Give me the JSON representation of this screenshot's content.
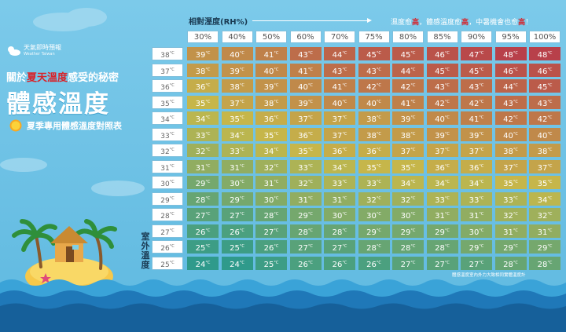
{
  "logo": {
    "name": "天氣即時預報",
    "sub": "Weather Taiwan"
  },
  "headline": {
    "prefix": "關於",
    "highlight": "夏天溫度",
    "suffix": "感受的秘密"
  },
  "title": "體感溫度",
  "subtitle": "夏季專用體感溫度對照表",
  "humidity_axis_label": "相對溼度(RH%)",
  "axis_note": {
    "p1": "濕度愈",
    "h1": "高",
    "p2": "，體感溫度愈",
    "h2": "高",
    "p3": "，中暑機會也愈",
    "h3": "高",
    "p4": "！"
  },
  "outdoor_label": "室外溫度",
  "footnote": "體感溫度室內外力大致相同實體溫度計",
  "degree_unit": "°C",
  "colors": {
    "background": "#6fc3e6",
    "highlight": "#d8232a",
    "sea": "#1f78b8"
  },
  "icons": [
    "sun-icon",
    "cloud-sun-icon",
    "palm-tree-icon",
    "hut-icon",
    "island-icon",
    "wave-icon"
  ],
  "chart_data": {
    "type": "table",
    "title": "夏季專用體感溫度對照表",
    "column_header": "相對溼度(RH%)",
    "row_header": "室外溫度",
    "humidity": [
      "30%",
      "40%",
      "50%",
      "60%",
      "70%",
      "75%",
      "80%",
      "85%",
      "90%",
      "95%",
      "100%"
    ],
    "temperatures": [
      38,
      37,
      36,
      35,
      34,
      33,
      32,
      31,
      30,
      29,
      28,
      27,
      26,
      25
    ],
    "apparent": [
      [
        39,
        40,
        41,
        43,
        44,
        45,
        45,
        46,
        47,
        48,
        48
      ],
      [
        38,
        39,
        40,
        41,
        43,
        43,
        44,
        45,
        45,
        46,
        46
      ],
      [
        36,
        38,
        39,
        40,
        41,
        42,
        42,
        43,
        43,
        44,
        45
      ],
      [
        35,
        37,
        38,
        39,
        40,
        40,
        41,
        42,
        42,
        43,
        43
      ],
      [
        34,
        35,
        36,
        37,
        37,
        38,
        39,
        40,
        41,
        42,
        42
      ],
      [
        33,
        34,
        35,
        36,
        37,
        38,
        38,
        39,
        39,
        40,
        40
      ],
      [
        32,
        33,
        34,
        35,
        36,
        36,
        37,
        37,
        37,
        38,
        38
      ],
      [
        31,
        31,
        32,
        33,
        34,
        35,
        35,
        36,
        36,
        37,
        37
      ],
      [
        29,
        30,
        31,
        32,
        33,
        33,
        34,
        34,
        34,
        35,
        35
      ],
      [
        28,
        29,
        30,
        31,
        31,
        32,
        32,
        33,
        33,
        33,
        34
      ],
      [
        27,
        27,
        28,
        29,
        30,
        30,
        30,
        31,
        31,
        32,
        32
      ],
      [
        26,
        26,
        27,
        28,
        28,
        29,
        29,
        29,
        30,
        31,
        31
      ],
      [
        25,
        25,
        26,
        27,
        27,
        28,
        28,
        28,
        29,
        29,
        29
      ],
      [
        24,
        24,
        25,
        26,
        26,
        26,
        27,
        27,
        27,
        28,
        28
      ]
    ],
    "color_scale": {
      "min": 24,
      "max": 48,
      "low": "#2f9a8b",
      "mid": "#c6b84a",
      "high": "#b8404a"
    }
  }
}
